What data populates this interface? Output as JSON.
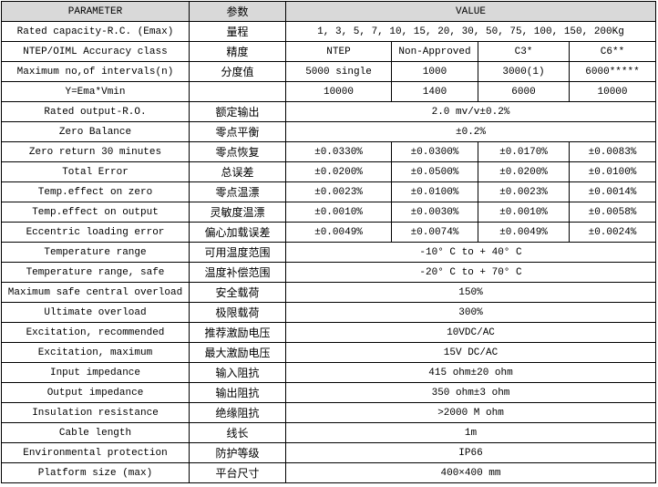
{
  "table": {
    "header": [
      "PARAMETER",
      "参数",
      "VALUE"
    ],
    "rows": [
      [
        "Rated capacity-R.C. (Emax)",
        "量程",
        [
          "1, 3, 5, 7, 10, 15, 20, 30, 50, 75, 100, 150, 200Kg"
        ]
      ],
      [
        "NTEP/OIML Accuracy class",
        "精度",
        [
          "NTEP",
          "Non-Approved",
          "C3*",
          "C6**"
        ]
      ],
      [
        "Maximum no,of intervals(n)",
        "分度值",
        [
          "5000  single",
          "1000",
          "3000(1)",
          "6000*****"
        ]
      ],
      [
        "Y=Ema*Vmin",
        null,
        [
          "10000",
          "1400",
          "6000",
          "10000"
        ]
      ],
      [
        "Rated output-R.O.",
        "额定输出",
        [
          "2.0 mv/v±0.2%"
        ]
      ],
      [
        "Zero Balance",
        "零点平衡",
        [
          "±0.2%"
        ]
      ],
      [
        "Zero return 30 minutes",
        "零点恢复",
        [
          "±0.0330%",
          "±0.0300%",
          "±0.0170%",
          "±0.0083%"
        ]
      ],
      [
        "Total Error",
        "总误差",
        [
          "±0.0200%",
          "±0.0500%",
          "±0.0200%",
          "±0.0100%"
        ]
      ],
      [
        "Temp.effect on zero",
        "零点温漂",
        [
          "±0.0023%",
          "±0.0100%",
          "±0.0023%",
          "±0.0014%"
        ]
      ],
      [
        "Temp.effect on output",
        "灵敏度温漂",
        [
          "±0.0010%",
          "±0.0030%",
          "±0.0010%",
          "±0.0058%"
        ]
      ],
      [
        "Eccentric loading error",
        "偏心加载误差",
        [
          "±0.0049%",
          "±0.0074%",
          "±0.0049%",
          "±0.0024%"
        ]
      ],
      [
        "Temperature range",
        "可用温度范围",
        [
          "-10° C to + 40° C"
        ]
      ],
      [
        "Temperature range, safe",
        "温度补偿范围",
        [
          "-20° C to + 70° C"
        ]
      ],
      [
        "Maximum safe central overload",
        "安全载荷",
        [
          "150%"
        ]
      ],
      [
        "Ultimate overload",
        "极限载荷",
        [
          "300%"
        ]
      ],
      [
        "Excitation, recommended",
        "推荐激励电压",
        [
          "10VDC/AC"
        ]
      ],
      [
        "Excitation, maximum",
        "最大激励电压",
        [
          "15V DC/AC"
        ]
      ],
      [
        "Input impedance",
        "输入阻抗",
        [
          "415 ohm±20 ohm"
        ]
      ],
      [
        "Output impedance",
        "输出阻抗",
        [
          "350 ohm±3 ohm"
        ]
      ],
      [
        "Insulation resistance",
        "绝缘阻抗",
        [
          ">2000 M ohm"
        ]
      ],
      [
        "Cable length",
        "线长",
        [
          "1m"
        ]
      ],
      [
        "Environmental protection",
        "防护等级",
        [
          "IP66"
        ]
      ],
      [
        "Platform size (max)",
        "平台尺寸",
        [
          "400×400 mm"
        ]
      ]
    ]
  }
}
